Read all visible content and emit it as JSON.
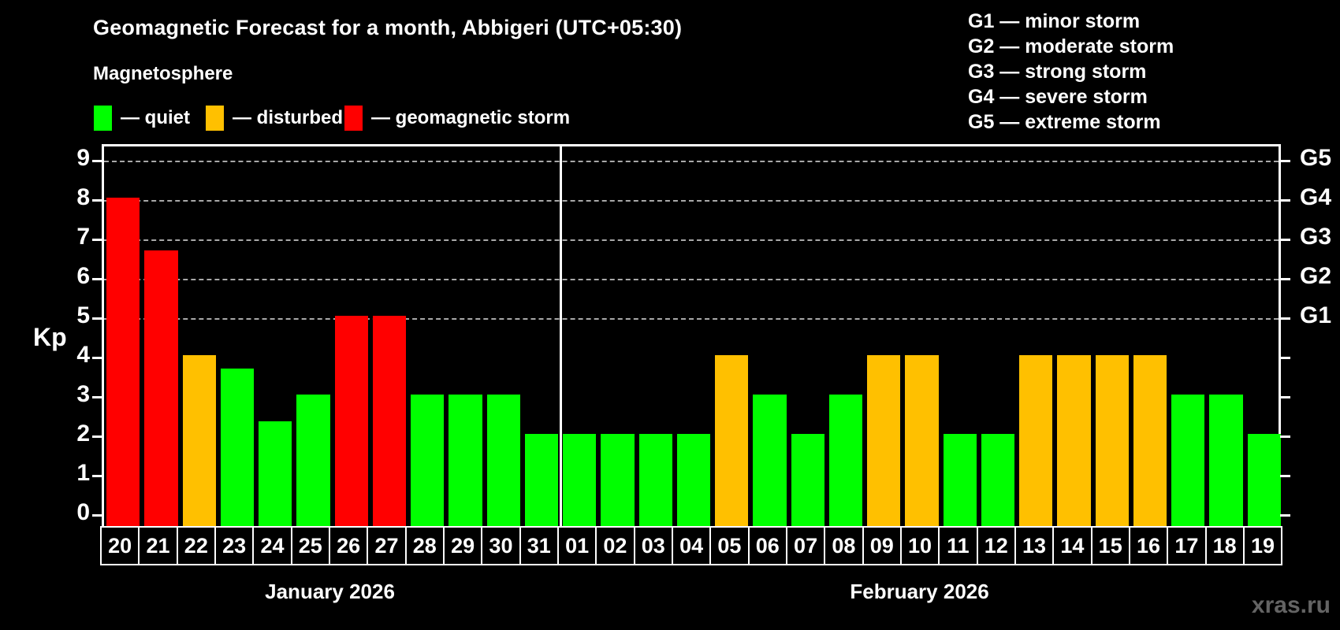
{
  "title": "Geomagnetic Forecast for a month, Abbigeri (UTC+05:30)",
  "subtitle": "Magnetosphere",
  "legend": {
    "items": [
      {
        "key": "quiet",
        "label": "— quiet",
        "color": "#00ff00"
      },
      {
        "key": "disturbed",
        "label": "— disturbed",
        "color": "#ffc000"
      },
      {
        "key": "storm",
        "label": "— geomagnetic storm",
        "color": "#ff0000"
      }
    ]
  },
  "g_legend": [
    "G1 — minor storm",
    "G2 — moderate storm",
    "G3 — strong storm",
    "G4 — severe storm",
    "G5 — extreme storm"
  ],
  "watermark": "xras.ru",
  "chart_data": {
    "type": "bar",
    "title": "Geomagnetic Forecast for a month, Abbigeri (UTC+05:30)",
    "ylabel": "Kp",
    "ylim": [
      0,
      9
    ],
    "grid": "dashed horizontal at Kp 5-9 only",
    "legend_position": "top",
    "yticks_left": [
      0,
      1,
      2,
      3,
      4,
      5,
      6,
      7,
      8,
      9
    ],
    "yticks_right": [
      0,
      1,
      2,
      3,
      4,
      5,
      6,
      7,
      8,
      9
    ],
    "g_ticks": [
      {
        "kp": 5,
        "label": "G1"
      },
      {
        "kp": 6,
        "label": "G2"
      },
      {
        "kp": 7,
        "label": "G3"
      },
      {
        "kp": 8,
        "label": "G4"
      },
      {
        "kp": 9,
        "label": "G5"
      }
    ],
    "gridlines_at": [
      5,
      6,
      7,
      8,
      9
    ],
    "months": [
      {
        "label": "January 2026",
        "days": 12
      },
      {
        "label": "February 2026",
        "days": 19
      }
    ],
    "categories": [
      "20",
      "21",
      "22",
      "23",
      "24",
      "25",
      "26",
      "27",
      "28",
      "29",
      "30",
      "31",
      "01",
      "02",
      "03",
      "04",
      "05",
      "06",
      "07",
      "08",
      "09",
      "10",
      "11",
      "12",
      "13",
      "14",
      "15",
      "16",
      "17",
      "18",
      "19"
    ],
    "values": [
      8,
      6.67,
      4,
      3.67,
      2.33,
      3,
      5,
      5,
      3,
      3,
      3,
      2,
      2,
      2,
      2,
      2,
      4,
      3,
      2,
      3,
      4,
      4,
      2,
      2,
      4,
      4,
      4,
      4,
      3,
      3,
      2
    ],
    "statuses": [
      "storm",
      "storm",
      "disturbed",
      "quiet",
      "quiet",
      "quiet",
      "storm",
      "storm",
      "quiet",
      "quiet",
      "quiet",
      "quiet",
      "quiet",
      "quiet",
      "quiet",
      "quiet",
      "disturbed",
      "quiet",
      "quiet",
      "quiet",
      "disturbed",
      "disturbed",
      "quiet",
      "quiet",
      "disturbed",
      "disturbed",
      "disturbed",
      "disturbed",
      "quiet",
      "quiet",
      "quiet"
    ]
  }
}
